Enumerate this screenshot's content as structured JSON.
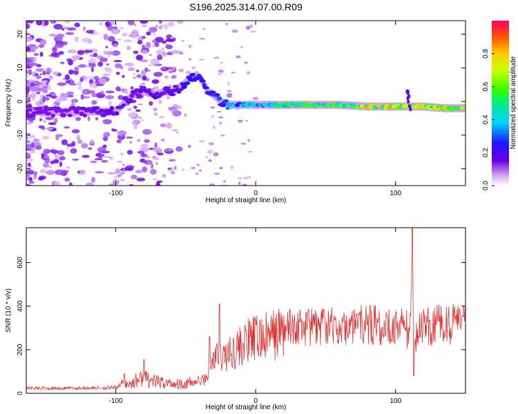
{
  "title": "S196.2025.314.07.00.R09",
  "chart_data": [
    {
      "type": "heatmap",
      "title": "S196.2025.314.07.00.R09",
      "xlabel": "Height of straight line (km)",
      "ylabel": "Frequency (Hz)",
      "xlim": [
        -164,
        150
      ],
      "ylim": [
        -25,
        24
      ],
      "xticks": [
        -100,
        0,
        100
      ],
      "yticks": [
        -20,
        -10,
        0,
        10,
        20
      ],
      "colorbar": {
        "label": "Normalized spectral amplitude",
        "range": [
          0,
          1
        ],
        "ticks": [
          0.0,
          0.2,
          0.4,
          0.6,
          0.8
        ]
      },
      "ridge": {
        "x": [
          -150,
          -130,
          -110,
          -100,
          -95,
          -88,
          -80,
          -72,
          -65,
          -58,
          -52,
          -46,
          -42,
          -38,
          -34,
          -30,
          -25,
          -20,
          -10,
          0,
          10,
          20,
          40,
          60,
          80,
          100,
          110,
          120,
          135,
          150
        ],
        "y": [
          -3,
          -3,
          -3,
          -3,
          -1,
          2,
          3,
          2,
          3,
          3,
          5,
          7,
          8,
          6,
          3,
          2,
          0,
          -1,
          -1,
          -1,
          -1,
          -1,
          -1,
          -1,
          -1.5,
          -1.5,
          -1.5,
          -1.5,
          -2,
          -2
        ]
      },
      "ridge_amplitude": {
        "x": [
          -150,
          -100,
          -60,
          -45,
          -30,
          -20,
          0,
          20,
          40,
          60,
          80,
          100,
          120,
          150
        ],
        "a": [
          0.1,
          0.2,
          0.2,
          0.3,
          0.3,
          0.4,
          0.5,
          0.6,
          0.6,
          0.7,
          0.85,
          0.85,
          0.8,
          0.8
        ]
      }
    },
    {
      "type": "line",
      "xlabel": "Height of straight line (km)",
      "ylabel": "SNR (10 * v/v)",
      "xlim": [
        -164,
        150
      ],
      "ylim": [
        0,
        760
      ],
      "xticks": [
        -100,
        0,
        100
      ],
      "yticks": [
        0,
        200,
        400,
        600
      ],
      "series": [
        {
          "name": "SNR",
          "color": "#e03030",
          "x": [
            -164,
            -140,
            -120,
            -100,
            -95,
            -90,
            -85,
            -80,
            -75,
            -70,
            -60,
            -50,
            -40,
            -36,
            -33,
            -30,
            -25,
            -20,
            -15,
            -10,
            -5,
            0,
            10,
            20,
            30,
            40,
            60,
            80,
            100,
            108,
            110,
            112,
            114,
            116,
            120,
            140,
            150
          ],
          "y": [
            25,
            22,
            25,
            25,
            50,
            40,
            60,
            70,
            60,
            50,
            45,
            45,
            55,
            65,
            110,
            160,
            170,
            175,
            200,
            220,
            240,
            250,
            260,
            290,
            300,
            300,
            305,
            310,
            320,
            300,
            250,
            480,
            240,
            300,
            310,
            310,
            310
          ],
          "spikes": [
            {
              "x": -94,
              "y": 90
            },
            {
              "x": -80,
              "y": 155
            },
            {
              "x": -33,
              "y": 260
            },
            {
              "x": -26,
              "y": 410
            },
            {
              "x": 112,
              "y": 760
            },
            {
              "x": 113,
              "y": 80
            }
          ]
        }
      ]
    }
  ]
}
